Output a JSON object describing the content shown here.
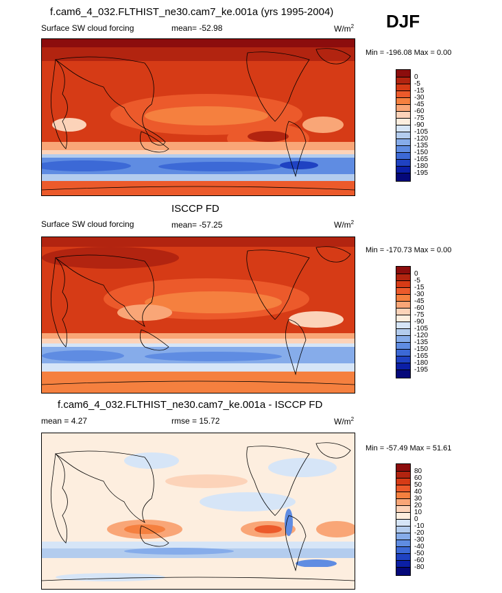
{
  "season": "DJF",
  "panels": [
    {
      "title": "f.cam6_4_032.FLTHIST_ne30.cam7_ke.001a (yrs 1995-2004)",
      "left_label": "Surface SW cloud forcing",
      "stat_label": "mean= -52.98",
      "units_base": "W/m",
      "units_exp": "2",
      "minmax": "Min = -196.08 Max =   0.00",
      "levels": [
        "0",
        "-5",
        "-15",
        "-30",
        "-45",
        "-60",
        "-75",
        "-90",
        "-105",
        "-120",
        "-135",
        "-150",
        "-165",
        "-180",
        "-195"
      ],
      "colors": [
        "#8c0d0d",
        "#b22410",
        "#d63b16",
        "#ec5a2b",
        "#f5803f",
        "#f9a677",
        "#fcd3b9",
        "#fdeedf",
        "#d6e5f7",
        "#b3ccee",
        "#86acea",
        "#5f8ce2",
        "#3c69d6",
        "#1f42c2",
        "#0b1fa6",
        "#05087a"
      ]
    },
    {
      "title": "ISCCP FD",
      "left_label": "Surface SW cloud forcing",
      "stat_label": "mean= -57.25",
      "units_base": "W/m",
      "units_exp": "2",
      "minmax": "Min = -170.73 Max =   0.00",
      "levels": [
        "0",
        "-5",
        "-15",
        "-30",
        "-45",
        "-60",
        "-75",
        "-90",
        "-105",
        "-120",
        "-135",
        "-150",
        "-165",
        "-180",
        "-195"
      ],
      "colors": [
        "#8c0d0d",
        "#b22410",
        "#d63b16",
        "#ec5a2b",
        "#f5803f",
        "#f9a677",
        "#fcd3b9",
        "#fdeedf",
        "#d6e5f7",
        "#b3ccee",
        "#86acea",
        "#5f8ce2",
        "#3c69d6",
        "#1f42c2",
        "#0b1fa6",
        "#05087a"
      ]
    },
    {
      "title": "f.cam6_4_032.FLTHIST_ne30.cam7_ke.001a - ISCCP FD",
      "left_label": "mean =   4.27",
      "stat_label": "rmse =  15.72",
      "units_base": "W/m",
      "units_exp": "2",
      "minmax": "Min = -57.49 Max =  51.61",
      "levels": [
        "80",
        "60",
        "50",
        "40",
        "30",
        "20",
        "10",
        "0",
        "-10",
        "-20",
        "-30",
        "-40",
        "-50",
        "-60",
        "-80"
      ],
      "colors": [
        "#8c0d0d",
        "#b22410",
        "#d63b16",
        "#ec5a2b",
        "#f5803f",
        "#f9a677",
        "#fcd3b9",
        "#fdeedf",
        "#d6e5f7",
        "#b3ccee",
        "#86acea",
        "#5f8ce2",
        "#3c69d6",
        "#1f42c2",
        "#0b1fa6",
        "#05087a"
      ]
    }
  ],
  "chart_data": [
    {
      "type": "heatmap",
      "title": "f.cam6_4_032.FLTHIST_ne30.cam7_ke.001a (yrs 1995-2004)",
      "subtitle": "Surface SW cloud forcing",
      "mean": -52.98,
      "min": -196.08,
      "max": 0.0,
      "units": "W/m2",
      "season": "DJF",
      "contour_levels": [
        0,
        -5,
        -15,
        -30,
        -45,
        -60,
        -75,
        -90,
        -105,
        -120,
        -135,
        -150,
        -165,
        -180,
        -195
      ]
    },
    {
      "type": "heatmap",
      "title": "ISCCP FD",
      "subtitle": "Surface SW cloud forcing",
      "mean": -57.25,
      "min": -170.73,
      "max": 0.0,
      "units": "W/m2",
      "season": "DJF",
      "contour_levels": [
        0,
        -5,
        -15,
        -30,
        -45,
        -60,
        -75,
        -90,
        -105,
        -120,
        -135,
        -150,
        -165,
        -180,
        -195
      ]
    },
    {
      "type": "heatmap",
      "title": "f.cam6_4_032.FLTHIST_ne30.cam7_ke.001a - ISCCP FD",
      "mean": 4.27,
      "rmse": 15.72,
      "min": -57.49,
      "max": 51.61,
      "units": "W/m2",
      "season": "DJF",
      "contour_levels": [
        80,
        60,
        50,
        40,
        30,
        20,
        10,
        0,
        -10,
        -20,
        -30,
        -40,
        -50,
        -60,
        -80
      ]
    }
  ]
}
